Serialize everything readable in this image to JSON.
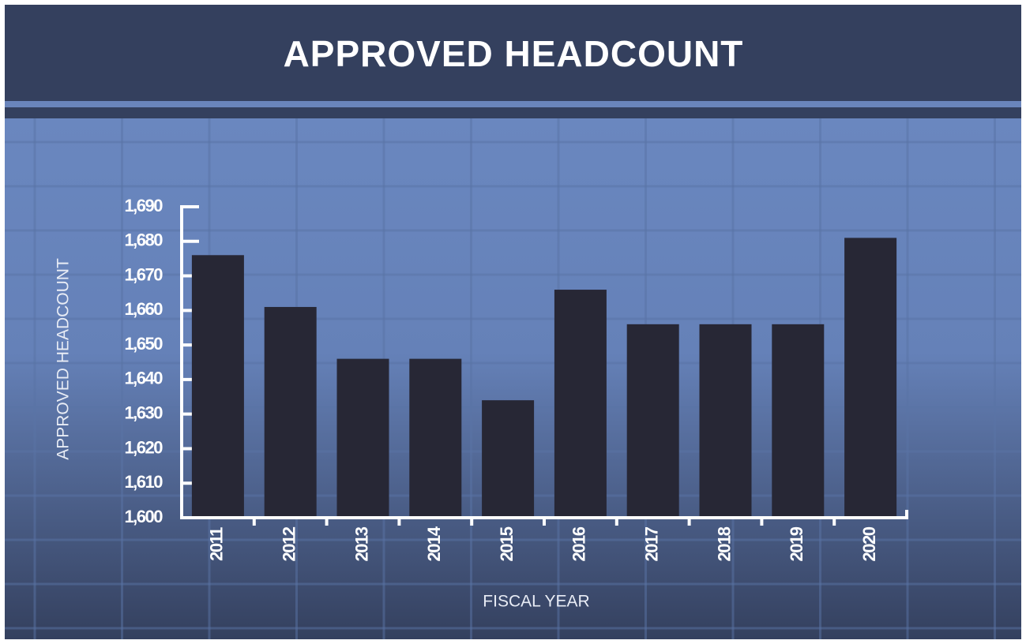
{
  "chart_data": {
    "type": "bar",
    "title": "APPROVED HEADCOUNT",
    "x_label": "FISCAL YEAR",
    "y_label": "APPROVED HEADCOUNT",
    "categories": [
      "2011",
      "2012",
      "2013",
      "2014",
      "2015",
      "2016",
      "2017",
      "2018",
      "2019",
      "2020"
    ],
    "values": [
      1676,
      1661,
      1646,
      1646,
      1634,
      1666,
      1656,
      1656,
      1656,
      1681
    ],
    "color": "#272735",
    "ylim": [
      1600,
      1690
    ],
    "yticks": [
      {
        "value": 1600,
        "label": "1,600"
      },
      {
        "value": 1610,
        "label": "1,610"
      },
      {
        "value": 1620,
        "label": "1,620"
      },
      {
        "value": 1630,
        "label": "1,630"
      },
      {
        "value": 1640,
        "label": "1,640"
      },
      {
        "value": 1650,
        "label": "1,650"
      },
      {
        "value": 1660,
        "label": "1,660"
      },
      {
        "value": 1670,
        "label": "1,670"
      },
      {
        "value": 1680,
        "label": "1,680"
      },
      {
        "value": 1690,
        "label": "1,690"
      }
    ],
    "grid": false
  }
}
